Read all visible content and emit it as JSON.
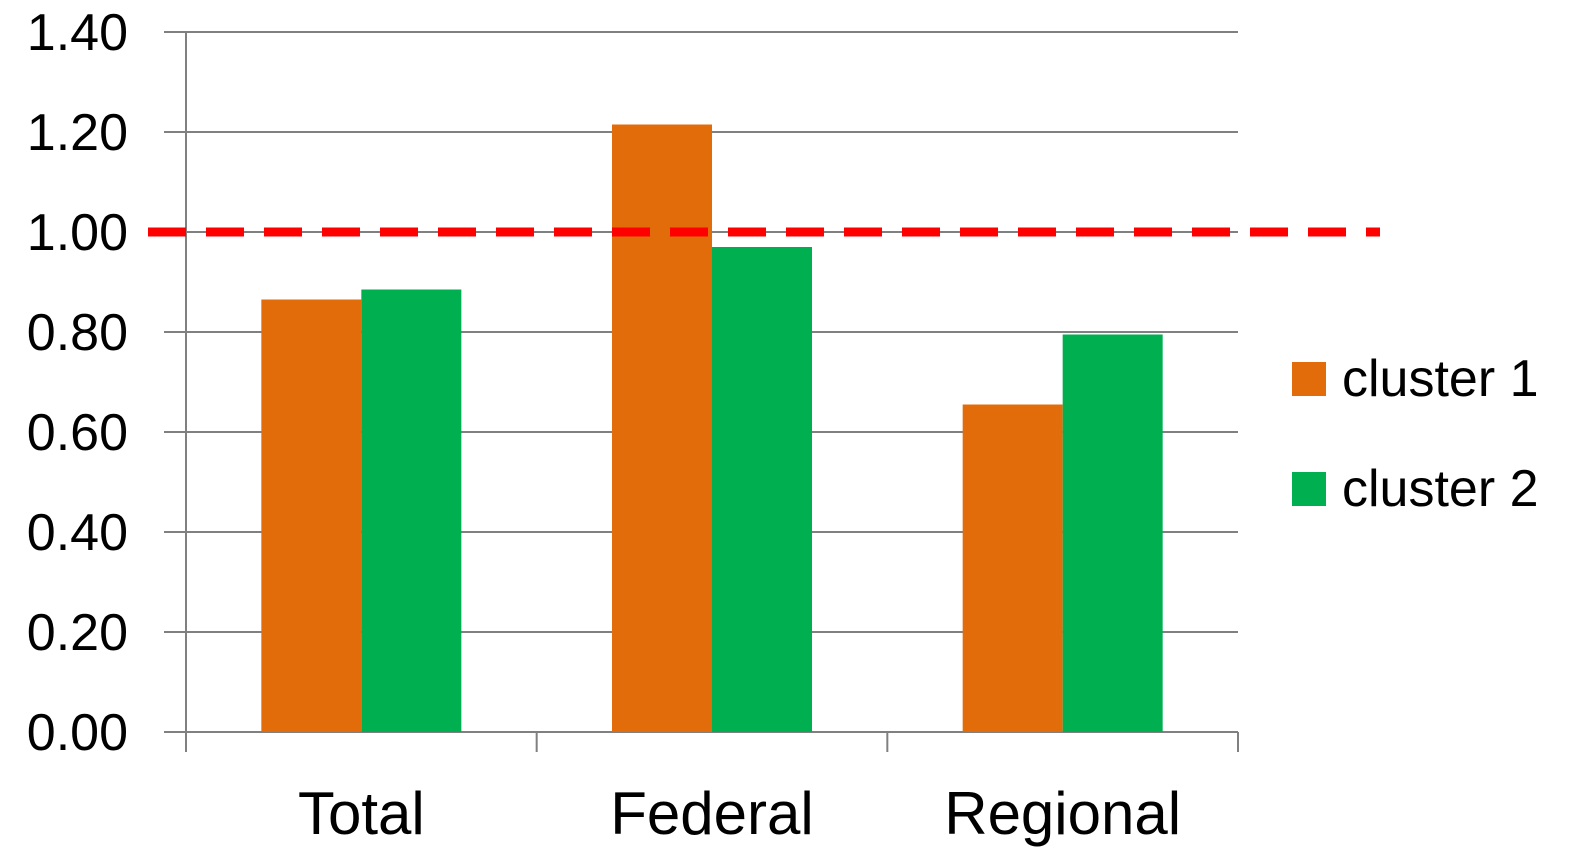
{
  "chart_data": {
    "type": "bar",
    "title": "",
    "xlabel": "",
    "ylabel": "",
    "categories": [
      "Total",
      "Federal",
      "Regional"
    ],
    "series": [
      {
        "name": "cluster 1",
        "color": "#E36C0A",
        "values": [
          0.865,
          1.215,
          0.655
        ]
      },
      {
        "name": "cluster 2",
        "color": "#00B050",
        "values": [
          0.885,
          0.97,
          0.795
        ]
      }
    ],
    "ylim": [
      0,
      1.4
    ],
    "yticks": [
      "0.00",
      "0.20",
      "0.40",
      "0.60",
      "0.80",
      "1.00",
      "1.20",
      "1.40"
    ],
    "reference_line": {
      "value": 1.0,
      "style": "dashed",
      "color": "#FF0000"
    },
    "grid": true,
    "legend_position": "right"
  }
}
